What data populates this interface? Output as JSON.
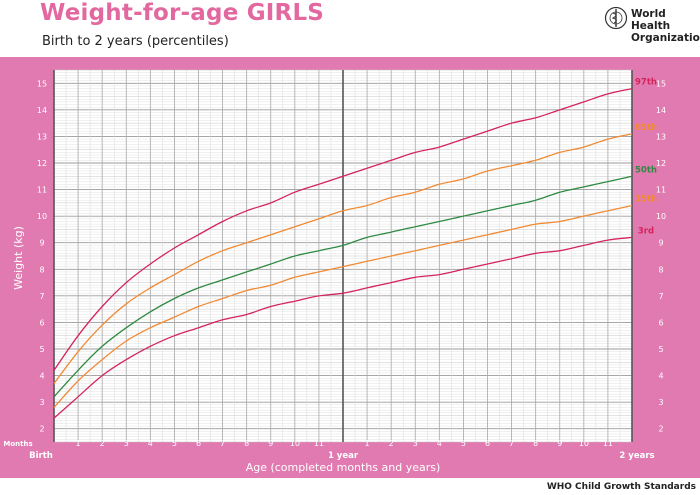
{
  "header": {
    "title": "Weight-for-age GIRLS",
    "subtitle": "Birth to 2 years (percentiles)",
    "org_line1": "World Health",
    "org_line2": "Organization"
  },
  "footer": {
    "source": "WHO Child Growth Standards"
  },
  "colors": {
    "frame": "#e17ab0",
    "line": "#e0e0e0",
    "p97": "#d4245b",
    "p85": "#f08a34",
    "p50": "#2e8a41",
    "p15": "#f08a34",
    "p3": "#d4245b"
  },
  "chart_data": {
    "type": "line",
    "xlabel": "Age (completed months and years)",
    "ylabel": "Weight (kg)",
    "xlim": [
      0,
      24
    ],
    "ylim": [
      1.5,
      15.5
    ],
    "months_label": "Months",
    "x_tick_labels": [
      "Birth",
      "1",
      "2",
      "3",
      "4",
      "5",
      "6",
      "7",
      "8",
      "9",
      "10",
      "11",
      "1 year",
      "1",
      "2",
      "3",
      "4",
      "5",
      "6",
      "7",
      "8",
      "9",
      "10",
      "11",
      "2 years"
    ],
    "y_ticks": [
      2,
      3,
      4,
      5,
      6,
      7,
      8,
      9,
      10,
      11,
      12,
      13,
      14,
      15
    ],
    "grid": true,
    "legend": "right-inline",
    "x": [
      0,
      1,
      2,
      3,
      4,
      5,
      6,
      7,
      8,
      9,
      10,
      11,
      12,
      13,
      14,
      15,
      16,
      17,
      18,
      19,
      20,
      21,
      22,
      23,
      24
    ],
    "series": [
      {
        "name": "97th",
        "color_key": "p97",
        "values": [
          4.2,
          5.5,
          6.6,
          7.5,
          8.2,
          8.8,
          9.3,
          9.8,
          10.2,
          10.5,
          10.9,
          11.2,
          11.5,
          11.8,
          12.1,
          12.4,
          12.6,
          12.9,
          13.2,
          13.5,
          13.7,
          14.0,
          14.3,
          14.6,
          14.8
        ]
      },
      {
        "name": "85th",
        "color_key": "p85",
        "values": [
          3.7,
          4.9,
          5.9,
          6.7,
          7.3,
          7.8,
          8.3,
          8.7,
          9.0,
          9.3,
          9.6,
          9.9,
          10.2,
          10.4,
          10.7,
          10.9,
          11.2,
          11.4,
          11.7,
          11.9,
          12.1,
          12.4,
          12.6,
          12.9,
          13.1
        ]
      },
      {
        "name": "50th",
        "color_key": "p50",
        "values": [
          3.2,
          4.2,
          5.1,
          5.8,
          6.4,
          6.9,
          7.3,
          7.6,
          7.9,
          8.2,
          8.5,
          8.7,
          8.9,
          9.2,
          9.4,
          9.6,
          9.8,
          10.0,
          10.2,
          10.4,
          10.6,
          10.9,
          11.1,
          11.3,
          11.5
        ]
      },
      {
        "name": "15th",
        "color_key": "p15",
        "values": [
          2.8,
          3.8,
          4.6,
          5.3,
          5.8,
          6.2,
          6.6,
          6.9,
          7.2,
          7.4,
          7.7,
          7.9,
          8.1,
          8.3,
          8.5,
          8.7,
          8.9,
          9.1,
          9.3,
          9.5,
          9.7,
          9.8,
          10.0,
          10.2,
          10.4
        ]
      },
      {
        "name": "3rd",
        "color_key": "p3",
        "values": [
          2.4,
          3.2,
          4.0,
          4.6,
          5.1,
          5.5,
          5.8,
          6.1,
          6.3,
          6.6,
          6.8,
          7.0,
          7.1,
          7.3,
          7.5,
          7.7,
          7.8,
          8.0,
          8.2,
          8.4,
          8.6,
          8.7,
          8.9,
          9.1,
          9.2
        ]
      }
    ]
  }
}
